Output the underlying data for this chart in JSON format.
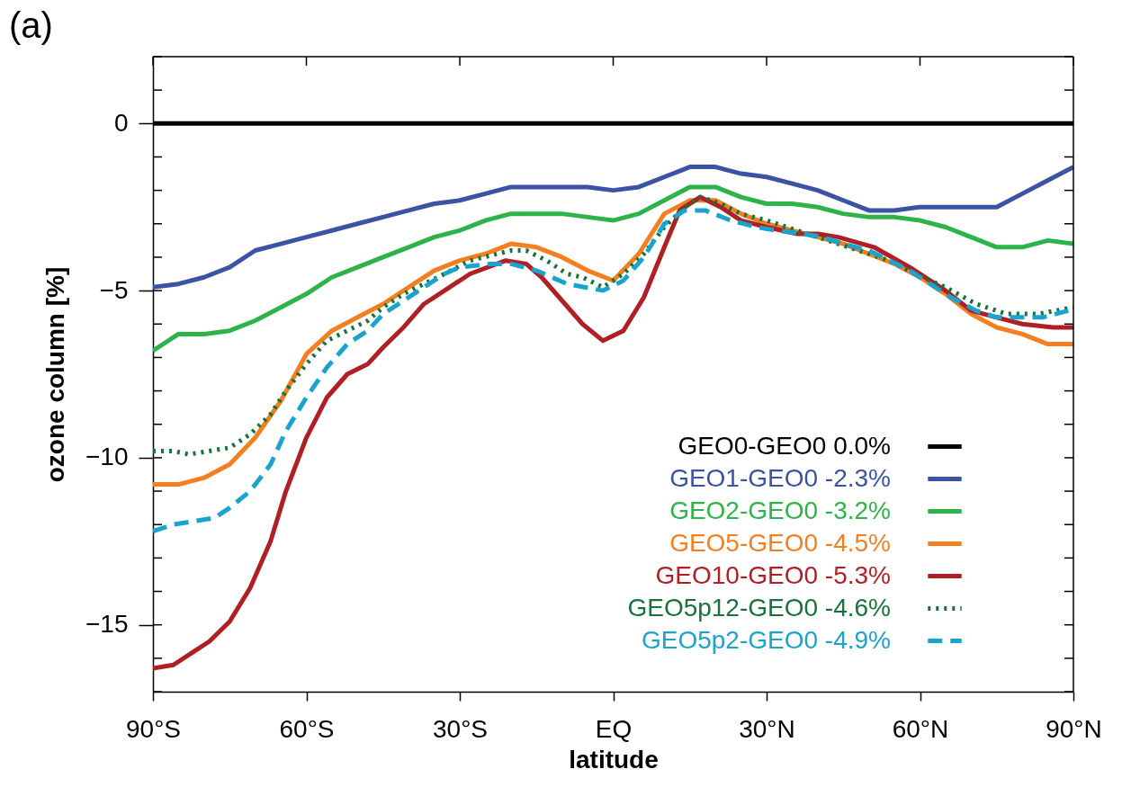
{
  "chart_data": {
    "type": "line",
    "title": "(a)",
    "xlabel": "latitude",
    "ylabel": "ozone column [%]",
    "xlim": [
      -90,
      90
    ],
    "ylim": [
      -17,
      2
    ],
    "xticks": [
      {
        "value": -90,
        "label": "90°S"
      },
      {
        "value": -60,
        "label": "60°S"
      },
      {
        "value": -30,
        "label": "30°S"
      },
      {
        "value": 0,
        "label": "EQ"
      },
      {
        "value": 30,
        "label": "30°N"
      },
      {
        "value": 60,
        "label": "60°N"
      },
      {
        "value": 90,
        "label": "90°N"
      }
    ],
    "yticks": [
      {
        "value": 2,
        "label": null
      },
      {
        "value": 1,
        "label": null
      },
      0,
      {
        "value": -1,
        "label": null
      },
      {
        "value": -2,
        "label": null
      },
      {
        "value": -3,
        "label": null
      },
      {
        "value": -4,
        "label": null
      },
      -5,
      {
        "value": -6,
        "label": null
      },
      {
        "value": -7,
        "label": null
      },
      {
        "value": -8,
        "label": null
      },
      {
        "value": -9,
        "label": null
      },
      -10,
      {
        "value": -11,
        "label": null
      },
      {
        "value": -12,
        "label": null
      },
      {
        "value": -13,
        "label": null
      },
      {
        "value": -14,
        "label": null
      },
      -15,
      {
        "value": -16,
        "label": null
      },
      {
        "value": -17,
        "label": null
      }
    ],
    "grid": false,
    "legend": "bottom right",
    "series": [
      {
        "name": "GEO0-GEO0 0.0%",
        "color": "#000000",
        "line_style": "solid",
        "x": [
          -90,
          90
        ],
        "values": [
          0,
          0
        ]
      },
      {
        "name": "GEO1-GEO0 -2.3%",
        "color": "#3a53a4",
        "line_style": "solid",
        "x": [
          -90,
          -85,
          -80,
          -75,
          -70,
          -65,
          -60,
          -55,
          -50,
          -45,
          -40,
          -35,
          -30,
          -25,
          -20,
          -15,
          -10,
          -5,
          0,
          5,
          10,
          15,
          20,
          25,
          30,
          35,
          40,
          45,
          50,
          55,
          60,
          65,
          70,
          75,
          80,
          85,
          90
        ],
        "values": [
          -4.9,
          -4.8,
          -4.6,
          -4.3,
          -3.8,
          -3.6,
          -3.4,
          -3.2,
          -3.0,
          -2.8,
          -2.6,
          -2.4,
          -2.3,
          -2.1,
          -1.9,
          -1.9,
          -1.9,
          -1.9,
          -2.0,
          -1.9,
          -1.6,
          -1.3,
          -1.3,
          -1.5,
          -1.6,
          -1.8,
          -2.0,
          -2.3,
          -2.6,
          -2.6,
          -2.5,
          -2.5,
          -2.5,
          -2.5,
          -2.1,
          -1.7,
          -1.3
        ]
      },
      {
        "name": "GEO2-GEO0 -3.2%",
        "color": "#2db34a",
        "line_style": "solid",
        "x": [
          -90,
          -85,
          -80,
          -75,
          -70,
          -65,
          -60,
          -55,
          -50,
          -45,
          -40,
          -35,
          -30,
          -25,
          -20,
          -15,
          -10,
          -5,
          0,
          5,
          10,
          15,
          20,
          25,
          30,
          35,
          40,
          45,
          50,
          55,
          60,
          65,
          70,
          75,
          80,
          85,
          90
        ],
        "values": [
          -6.8,
          -6.3,
          -6.3,
          -6.2,
          -5.9,
          -5.5,
          -5.1,
          -4.6,
          -4.3,
          -4.0,
          -3.7,
          -3.4,
          -3.2,
          -2.9,
          -2.7,
          -2.7,
          -2.7,
          -2.8,
          -2.9,
          -2.7,
          -2.3,
          -1.9,
          -1.9,
          -2.2,
          -2.4,
          -2.4,
          -2.5,
          -2.7,
          -2.8,
          -2.8,
          -2.9,
          -3.1,
          -3.4,
          -3.7,
          -3.7,
          -3.5,
          -3.6
        ]
      },
      {
        "name": "GEO5-GEO0 -4.5%",
        "color": "#f47f20",
        "line_style": "solid",
        "x": [
          -90,
          -85,
          -80,
          -75,
          -70,
          -65,
          -60,
          -55,
          -50,
          -45,
          -40,
          -35,
          -30,
          -25,
          -20,
          -15,
          -10,
          -5,
          0,
          5,
          10,
          15,
          20,
          25,
          30,
          35,
          40,
          45,
          50,
          55,
          60,
          65,
          70,
          75,
          80,
          85,
          90
        ],
        "values": [
          -10.8,
          -10.8,
          -10.6,
          -10.2,
          -9.4,
          -8.3,
          -6.9,
          -6.2,
          -5.8,
          -5.4,
          -4.9,
          -4.4,
          -4.1,
          -3.9,
          -3.6,
          -3.7,
          -4.0,
          -4.4,
          -4.7,
          -3.9,
          -2.7,
          -2.3,
          -2.3,
          -2.7,
          -3.0,
          -3.2,
          -3.4,
          -3.6,
          -3.9,
          -4.2,
          -4.6,
          -5.1,
          -5.7,
          -6.1,
          -6.3,
          -6.6,
          -6.6
        ]
      },
      {
        "name": "GEO10-GEO0 -5.3%",
        "color": "#b01f24",
        "line_style": "solid",
        "x": [
          -90,
          -86,
          -82,
          -79,
          -75,
          -71,
          -67,
          -64,
          -60,
          -56,
          -52,
          -48,
          -45,
          -41,
          -37,
          -33,
          -28,
          -21,
          -17,
          -14,
          -10,
          -6,
          -2,
          2,
          6,
          10,
          13,
          17,
          21,
          25,
          30,
          36,
          40,
          44,
          51,
          58,
          65,
          70,
          75,
          80,
          86,
          90
        ],
        "values": [
          -16.3,
          -16.2,
          -15.8,
          -15.5,
          -14.9,
          -13.9,
          -12.5,
          -11.0,
          -9.4,
          -8.2,
          -7.5,
          -7.2,
          -6.7,
          -6.1,
          -5.4,
          -5.0,
          -4.5,
          -4.1,
          -4.2,
          -4.6,
          -5.3,
          -6.0,
          -6.5,
          -6.2,
          -5.2,
          -3.7,
          -2.6,
          -2.2,
          -2.5,
          -2.9,
          -3.1,
          -3.3,
          -3.3,
          -3.4,
          -3.7,
          -4.3,
          -5.0,
          -5.6,
          -5.8,
          -6.0,
          -6.1,
          -6.1
        ]
      },
      {
        "name": "GEO5p12-GEO0 -4.6%",
        "color": "#18733a",
        "line_style": "dotted",
        "x": [
          -90,
          -86,
          -83,
          -79,
          -75,
          -71,
          -67,
          -64,
          -60,
          -56,
          -52,
          -48,
          -45,
          -41,
          -37,
          -33,
          -28,
          -20,
          -17,
          -13,
          -9,
          -6,
          -2,
          2,
          6,
          10,
          14,
          17,
          21,
          25,
          30,
          36,
          42,
          48,
          54,
          59,
          65,
          71,
          77,
          83,
          90
        ],
        "values": [
          -9.8,
          -9.8,
          -9.9,
          -9.8,
          -9.7,
          -9.3,
          -8.7,
          -8.0,
          -7.2,
          -6.5,
          -6.2,
          -5.9,
          -5.5,
          -5.1,
          -4.8,
          -4.5,
          -4.1,
          -3.8,
          -3.8,
          -4.1,
          -4.5,
          -4.6,
          -4.9,
          -4.5,
          -3.9,
          -3.1,
          -2.5,
          -2.2,
          -2.4,
          -2.7,
          -2.9,
          -3.2,
          -3.5,
          -3.8,
          -4.1,
          -4.5,
          -4.9,
          -5.4,
          -5.7,
          -5.7,
          -5.5
        ]
      },
      {
        "name": "GEO5p2-GEO0 -4.9%",
        "color": "#1aa3cf",
        "line_style": "dashed",
        "x": [
          -90,
          -86,
          -82,
          -78,
          -75,
          -71,
          -67,
          -64,
          -60,
          -56,
          -52,
          -48,
          -45,
          -41,
          -37,
          -33,
          -30,
          -24,
          -20,
          -15,
          -9,
          -2,
          2,
          6,
          10,
          14,
          18,
          23,
          28,
          32,
          37,
          41,
          45,
          50,
          54,
          58,
          62,
          66,
          71,
          75,
          80,
          84,
          89
        ],
        "values": [
          -12.2,
          -12.0,
          -11.9,
          -11.8,
          -11.5,
          -11.0,
          -10.2,
          -9.2,
          -8.2,
          -7.3,
          -6.6,
          -6.2,
          -5.7,
          -5.3,
          -4.9,
          -4.5,
          -4.3,
          -4.2,
          -4.2,
          -4.4,
          -4.8,
          -5.0,
          -4.7,
          -4.0,
          -3.0,
          -2.6,
          -2.6,
          -2.9,
          -3.1,
          -3.2,
          -3.3,
          -3.4,
          -3.6,
          -3.8,
          -4.1,
          -4.4,
          -4.8,
          -5.2,
          -5.6,
          -5.8,
          -5.8,
          -5.8,
          -5.6
        ]
      }
    ]
  }
}
